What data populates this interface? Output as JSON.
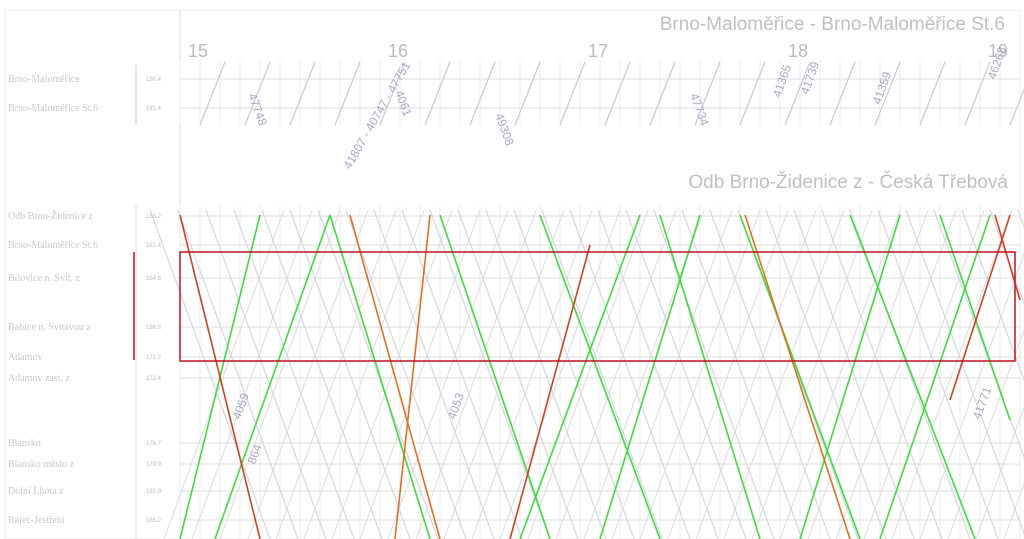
{
  "sections": [
    {
      "title": "Brno-Maloměřice - Brno-Maloměřice St.6",
      "hours": [
        "15",
        "16",
        "17",
        "18",
        "19"
      ],
      "stations": [
        {
          "name": "Brno-Maloměřice",
          "km": "180.4"
        },
        {
          "name": "Brno-Maloměřice St.6",
          "km": "181.4"
        }
      ]
    },
    {
      "title": "Odb Brno-Židenice z - Česká Třebová",
      "stations": [
        {
          "name": "Odb Brno-Židenice z",
          "km": "158.2"
        },
        {
          "name": "Brno-Maloměřice St.6",
          "km": "161.4"
        },
        {
          "name": "Bílovice n. Svit. z",
          "km": "164.6"
        },
        {
          "name": "Babice n. Svitavou z",
          "km": "168.8"
        },
        {
          "name": "Adamov",
          "km": "171.2"
        },
        {
          "name": "Adamov zast. z",
          "km": "172.4"
        },
        {
          "name": "Blansko",
          "km": "178.7"
        },
        {
          "name": "Blansko město z",
          "km": "179.9"
        },
        {
          "name": "Dolní Lhota z",
          "km": "182.9"
        },
        {
          "name": "Rájec-Jestřebí",
          "km": "185.2"
        }
      ]
    }
  ],
  "trains": [
    "47748",
    "4061",
    "49308",
    "47734",
    "41365",
    "41739",
    "41359",
    "46268",
    "41807 - 40747 - 47751",
    "4059",
    "4053",
    "41771",
    "864"
  ]
}
